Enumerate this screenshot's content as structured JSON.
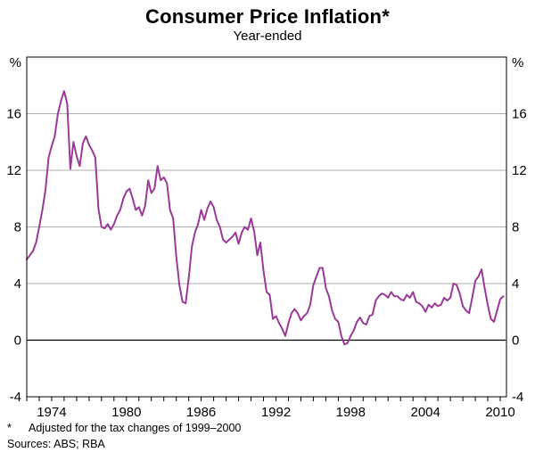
{
  "header": {
    "title": "Consumer Price Inflation*",
    "subtitle": "Year-ended"
  },
  "footer": {
    "footnote_marker": "*",
    "footnote_text": "Adjusted for the tax changes of 1999–2000",
    "sources": "Sources: ABS; RBA"
  },
  "chart_data": {
    "type": "line",
    "title": "Consumer Price Inflation*",
    "subtitle": "Year-ended",
    "unit_label": "%",
    "line_color": "#9B3A96",
    "grid_color": "#ADADAD",
    "zero_line_color": "#000000",
    "x_range": [
      1972,
      2010.5
    ],
    "y_range": [
      -4,
      20
    ],
    "y_ticks": [
      -4,
      0,
      4,
      8,
      12,
      16
    ],
    "x_tick_labels": [
      1974,
      1980,
      1986,
      1992,
      1998,
      2004,
      2010
    ],
    "x_minor_tick_step": 1,
    "x_start": 1972.0,
    "x_step": 0.25,
    "series_name": "Consumer price inflation (year-ended %)",
    "values": [
      5.7,
      6.0,
      6.3,
      6.9,
      8.0,
      9.2,
      10.6,
      12.9,
      13.7,
      14.4,
      16.0,
      16.9,
      17.6,
      16.7,
      12.1,
      14.0,
      13.0,
      12.3,
      13.9,
      14.4,
      13.8,
      13.4,
      12.9,
      9.3,
      8.0,
      7.9,
      8.2,
      7.8,
      8.2,
      8.8,
      9.2,
      10.0,
      10.5,
      10.7,
      10.0,
      9.2,
      9.4,
      8.8,
      9.5,
      11.3,
      10.4,
      10.7,
      12.3,
      11.3,
      11.5,
      11.1,
      9.2,
      8.6,
      5.9,
      3.9,
      2.7,
      2.6,
      4.4,
      6.6,
      7.6,
      8.2,
      9.2,
      8.5,
      9.3,
      9.8,
      9.4,
      8.5,
      8.0,
      7.1,
      6.9,
      7.1,
      7.3,
      7.6,
      6.8,
      7.6,
      8.0,
      7.8,
      8.6,
      7.7,
      6.0,
      6.9,
      4.9,
      3.4,
      3.2,
      1.5,
      1.7,
      1.2,
      0.8,
      0.3,
      1.2,
      1.9,
      2.2,
      1.9,
      1.4,
      1.7,
      1.9,
      2.5,
      3.9,
      4.5,
      5.1,
      5.1,
      3.7,
      3.1,
      2.1,
      1.5,
      1.3,
      0.3,
      -0.3,
      -0.2,
      0.3,
      0.7,
      1.3,
      1.6,
      1.2,
      1.1,
      1.7,
      1.8,
      2.8,
      3.1,
      3.3,
      3.2,
      3.0,
      3.4,
      3.1,
      3.1,
      2.9,
      2.8,
      3.2,
      3.0,
      3.4,
      2.7,
      2.6,
      2.4,
      2.0,
      2.5,
      2.3,
      2.6,
      2.4,
      2.5,
      3.0,
      2.8,
      3.0,
      4.0,
      3.9,
      3.3,
      2.4,
      2.1,
      1.9,
      3.0,
      4.2,
      4.5,
      5.0,
      3.7,
      2.5,
      1.5,
      1.3,
      2.1,
      2.9,
      3.1
    ]
  }
}
